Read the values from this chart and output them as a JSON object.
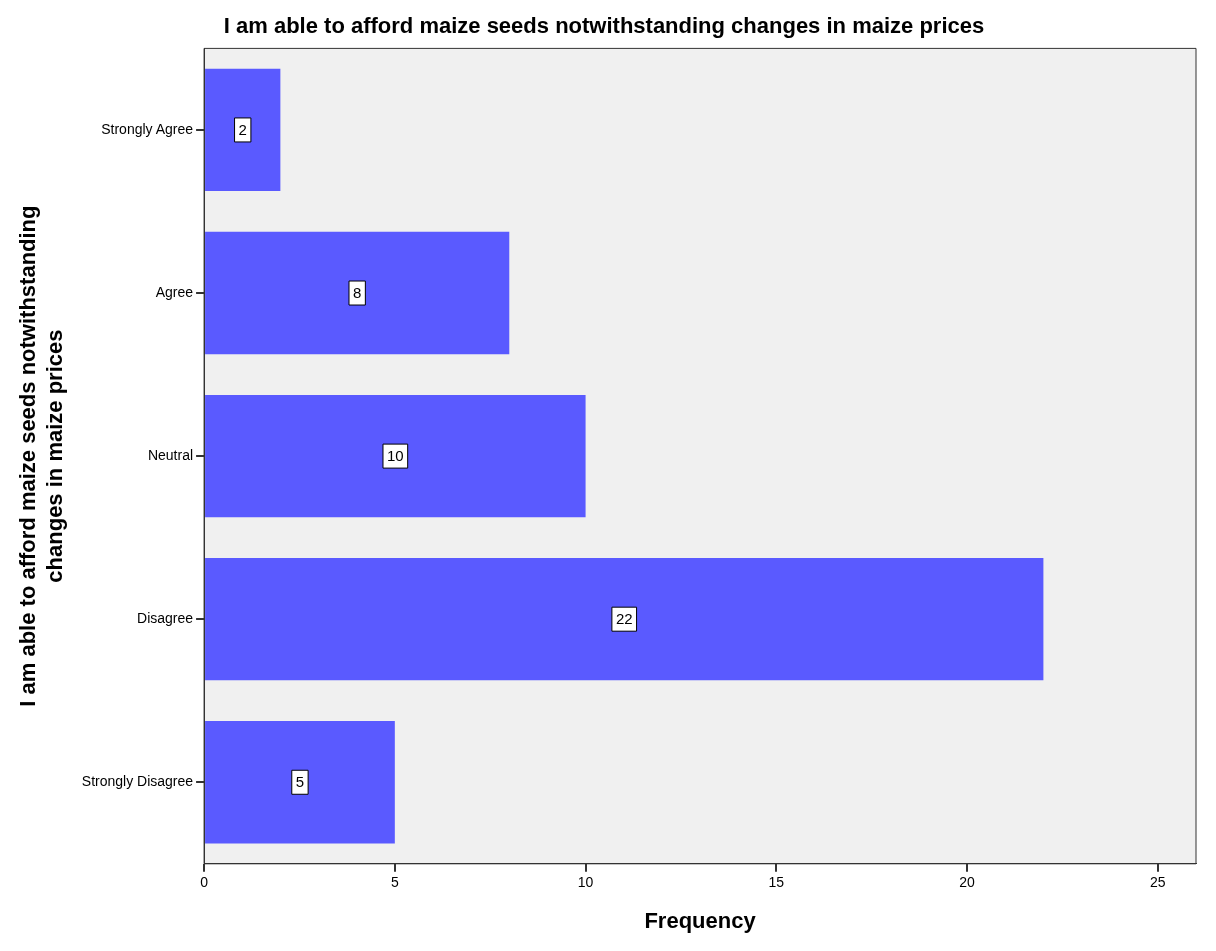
{
  "chart_data": {
    "type": "bar",
    "orientation": "horizontal",
    "title": "I am able to afford maize seeds notwithstanding changes in maize prices",
    "xlabel": "Frequency",
    "ylabel": "I am able to afford maize seeds notwithstanding changes in maize prices",
    "categories": [
      "Strongly Agree",
      "Agree",
      "Neutral",
      "Disagree",
      "Strongly Disagree"
    ],
    "values": [
      2,
      8,
      10,
      22,
      5
    ],
    "color": "#5a5aff",
    "data_labels": true,
    "grid": false,
    "legend": false,
    "xlim": [
      0,
      26
    ],
    "xticks": [
      0,
      5,
      10,
      15,
      20,
      25
    ]
  }
}
